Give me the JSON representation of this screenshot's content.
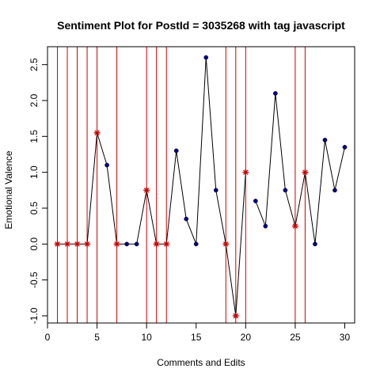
{
  "chart_data": {
    "type": "line",
    "title": "Sentiment Plot for PostId =  3035268  with tag  javascript",
    "xlabel": "Comments and Edits",
    "ylabel": "Emotional Valence",
    "xlim": [
      0,
      31
    ],
    "ylim": [
      -1.1,
      2.75
    ],
    "x_ticks": [
      0,
      5,
      10,
      15,
      20,
      25,
      30
    ],
    "y_ticks": [
      -1.0,
      -0.5,
      0.0,
      0.5,
      1.0,
      1.5,
      2.0,
      2.5
    ],
    "x_tick_labels": [
      "0",
      "5",
      "10",
      "15",
      "20",
      "25",
      "30"
    ],
    "y_tick_labels": [
      "-1.0",
      "-0.5",
      "0.0",
      "0.5",
      "1.0",
      "1.5",
      "2.0",
      "2.5"
    ],
    "vertical_lines": [
      1,
      2,
      3,
      4,
      5,
      7,
      10,
      11,
      12,
      18,
      19,
      20,
      25,
      26
    ],
    "series": [
      {
        "x": [
          1,
          2,
          3,
          4,
          5,
          6,
          7,
          8,
          9,
          10,
          11,
          12,
          13,
          14,
          15,
          16,
          17,
          18,
          19,
          20,
          21,
          22,
          23,
          24,
          25,
          26,
          27,
          28,
          29,
          30
        ],
        "values": [
          0,
          0,
          0,
          0,
          1.55,
          1.1,
          0,
          0,
          0,
          0.75,
          0,
          0,
          1.3,
          0.35,
          0,
          2.6,
          0.75,
          0,
          -1.0,
          1.0,
          0.6,
          0.25,
          2.1,
          0.75,
          0.25,
          1.0,
          0,
          1.45,
          0.75,
          1.35
        ]
      }
    ],
    "line_breaks_after_x": [
      20
    ],
    "markers": {
      "red_star_x": [
        1,
        2,
        3,
        4,
        5,
        7,
        10,
        11,
        12,
        18,
        19,
        20,
        25,
        26
      ]
    },
    "colors": {
      "line": "#000000",
      "vertical_line": "#cc0000",
      "point": "#00008b",
      "star": "#cc0000"
    },
    "grid": false,
    "legend": "none"
  }
}
